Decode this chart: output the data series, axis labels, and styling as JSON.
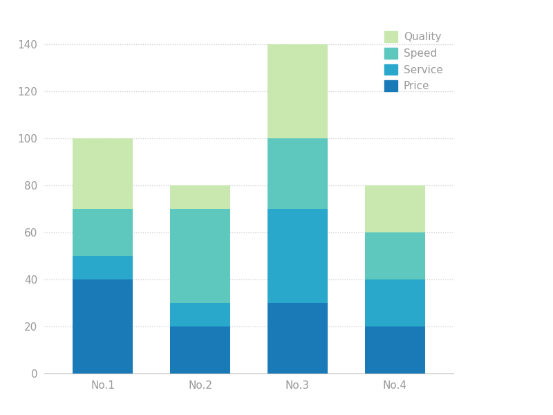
{
  "categories": [
    "No.1",
    "No.2",
    "No.3",
    "No.4"
  ],
  "series": {
    "Price": [
      40,
      20,
      30,
      20
    ],
    "Service": [
      10,
      10,
      40,
      20
    ],
    "Speed": [
      20,
      40,
      30,
      20
    ],
    "Quality": [
      30,
      10,
      40,
      20
    ]
  },
  "colors": {
    "Price": "#1a7ab8",
    "Service": "#2aa8cc",
    "Speed": "#5ec8be",
    "Quality": "#c8e8b0"
  },
  "legend_order": [
    "Quality",
    "Speed",
    "Service",
    "Price"
  ],
  "ylim": [
    0,
    150
  ],
  "yticks": [
    0,
    20,
    40,
    60,
    80,
    100,
    120,
    140
  ],
  "bar_width": 0.62,
  "background_color": "#ffffff",
  "grid_color": "#cccccc",
  "spine_color": "#bbbbbb",
  "label_color": "#999999",
  "legend_fontsize": 11,
  "tick_fontsize": 11
}
